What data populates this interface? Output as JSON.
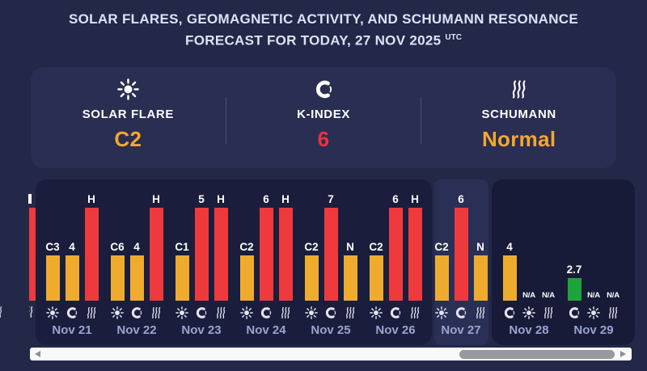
{
  "title": {
    "line1": "SOLAR FLARES, GEOMAGNETIC ACTIVITY, AND SCHUMANN RESONANCE",
    "line2": "FORECAST FOR TODAY, 27 NOV 2025",
    "utc": "UTC"
  },
  "summary": {
    "items": [
      {
        "icon": "sun-icon",
        "label": "SOLAR FLARE",
        "value": "C2",
        "value_color": "#f4a72e"
      },
      {
        "icon": "magnetosphere-icon",
        "label": "K-INDEX",
        "value": "6",
        "value_color": "#eb333d"
      },
      {
        "icon": "waves-icon",
        "label": "SCHUMANN",
        "value": "Normal",
        "value_color": "#f4a72e"
      }
    ]
  },
  "colors": {
    "orange": "#efab2e",
    "red": "#ee3a3c",
    "green": "#1ea43c",
    "bar_label": "#ffffff",
    "date_label": "#9aa3d0",
    "card_history": "#1a1e3c",
    "card_today": "#2a3055",
    "card_forecast": "#171b37",
    "page_background": "#232849"
  },
  "chart": {
    "cards": [
      {
        "name": "history",
        "days": [
          {
            "date": "Nov 21",
            "icons": [
              "sun-icon",
              "magnetosphere-icon",
              "waves-icon"
            ],
            "bars": [
              {
                "metric": "solar-flare",
                "label": "C3",
                "color": "orange",
                "level": "medium"
              },
              {
                "metric": "k-index",
                "label": "4",
                "color": "orange",
                "level": "medium"
              },
              {
                "metric": "schumann",
                "label": "H",
                "color": "red",
                "level": "high"
              }
            ]
          },
          {
            "date": "Nov 22",
            "icons": [
              "sun-icon",
              "magnetosphere-icon",
              "waves-icon"
            ],
            "bars": [
              {
                "metric": "solar-flare",
                "label": "C6",
                "color": "orange",
                "level": "medium"
              },
              {
                "metric": "k-index",
                "label": "4",
                "color": "orange",
                "level": "medium"
              },
              {
                "metric": "schumann",
                "label": "H",
                "color": "red",
                "level": "high"
              }
            ]
          },
          {
            "date": "Nov 23",
            "icons": [
              "sun-icon",
              "magnetosphere-icon",
              "waves-icon"
            ],
            "bars": [
              {
                "metric": "solar-flare",
                "label": "C1",
                "color": "orange",
                "level": "medium"
              },
              {
                "metric": "k-index",
                "label": "5",
                "color": "red",
                "level": "high"
              },
              {
                "metric": "schumann",
                "label": "H",
                "color": "red",
                "level": "high"
              }
            ]
          },
          {
            "date": "Nov 24",
            "icons": [
              "sun-icon",
              "magnetosphere-icon",
              "waves-icon"
            ],
            "bars": [
              {
                "metric": "solar-flare",
                "label": "C2",
                "color": "orange",
                "level": "medium"
              },
              {
                "metric": "k-index",
                "label": "6",
                "color": "red",
                "level": "high"
              },
              {
                "metric": "schumann",
                "label": "H",
                "color": "red",
                "level": "high"
              }
            ]
          },
          {
            "date": "Nov 25",
            "icons": [
              "sun-icon",
              "magnetosphere-icon",
              "waves-icon"
            ],
            "bars": [
              {
                "metric": "solar-flare",
                "label": "C2",
                "color": "orange",
                "level": "medium"
              },
              {
                "metric": "k-index",
                "label": "7",
                "color": "red",
                "level": "high"
              },
              {
                "metric": "schumann",
                "label": "N",
                "color": "orange",
                "level": "medium"
              }
            ]
          },
          {
            "date": "Nov 26",
            "icons": [
              "sun-icon",
              "magnetosphere-icon",
              "waves-icon"
            ],
            "bars": [
              {
                "metric": "solar-flare",
                "label": "C2",
                "color": "orange",
                "level": "medium"
              },
              {
                "metric": "k-index",
                "label": "6",
                "color": "red",
                "level": "high"
              },
              {
                "metric": "schumann",
                "label": "H",
                "color": "red",
                "level": "high"
              }
            ]
          }
        ]
      },
      {
        "name": "today",
        "days": [
          {
            "date": "Nov 27",
            "icons": [
              "sun-icon",
              "magnetosphere-icon",
              "waves-icon"
            ],
            "bars": [
              {
                "metric": "solar-flare",
                "label": "C2",
                "color": "orange",
                "level": "medium"
              },
              {
                "metric": "k-index",
                "label": "6",
                "color": "red",
                "level": "high"
              },
              {
                "metric": "schumann",
                "label": "N",
                "color": "orange",
                "level": "medium"
              }
            ]
          }
        ]
      },
      {
        "name": "forecast",
        "days": [
          {
            "date": "Nov 28",
            "icons": [
              "magnetosphere-icon",
              "sun-icon",
              "waves-icon"
            ],
            "bars": [
              {
                "metric": "k-index",
                "label": "4",
                "color": "orange",
                "level": "medium"
              },
              {
                "metric": "solar-flare",
                "label": "N/A",
                "color": "none",
                "level": "none"
              },
              {
                "metric": "schumann",
                "label": "N/A",
                "color": "none",
                "level": "none"
              }
            ]
          },
          {
            "date": "Nov 29",
            "icons": [
              "magnetosphere-icon",
              "sun-icon",
              "waves-icon"
            ],
            "bars": [
              {
                "metric": "k-index",
                "label": "2.7",
                "color": "green",
                "level": "low"
              },
              {
                "metric": "solar-flare",
                "label": "N/A",
                "color": "none",
                "level": "none"
              },
              {
                "metric": "schumann",
                "label": "N/A",
                "color": "none",
                "level": "none"
              }
            ]
          }
        ]
      }
    ],
    "partial_previous_day": {
      "visible_bar_metric": "schumann",
      "bar_color": "red",
      "label_fragment": "H"
    }
  },
  "chart_data": {
    "type": "bar",
    "categories": [
      "Nov 21",
      "Nov 22",
      "Nov 23",
      "Nov 24",
      "Nov 25",
      "Nov 26",
      "Nov 27",
      "Nov 28",
      "Nov 29"
    ],
    "series": [
      {
        "name": "Solar Flare",
        "values": [
          "C3",
          "C6",
          "C1",
          "C2",
          "C2",
          "C2",
          "C2",
          "N/A",
          "N/A"
        ]
      },
      {
        "name": "K-Index",
        "values": [
          4,
          4,
          5,
          6,
          7,
          6,
          6,
          4,
          2.7
        ]
      },
      {
        "name": "Schumann",
        "values": [
          "H",
          "H",
          "H",
          "H",
          "N",
          "H",
          "N",
          "N/A",
          "N/A"
        ]
      }
    ],
    "title": "Solar flares, geomagnetic activity, and Schumann resonance forecast",
    "xlabel": "",
    "ylabel": "",
    "highlighted_category": "Nov 27",
    "legend_position": "none",
    "grid": false
  }
}
